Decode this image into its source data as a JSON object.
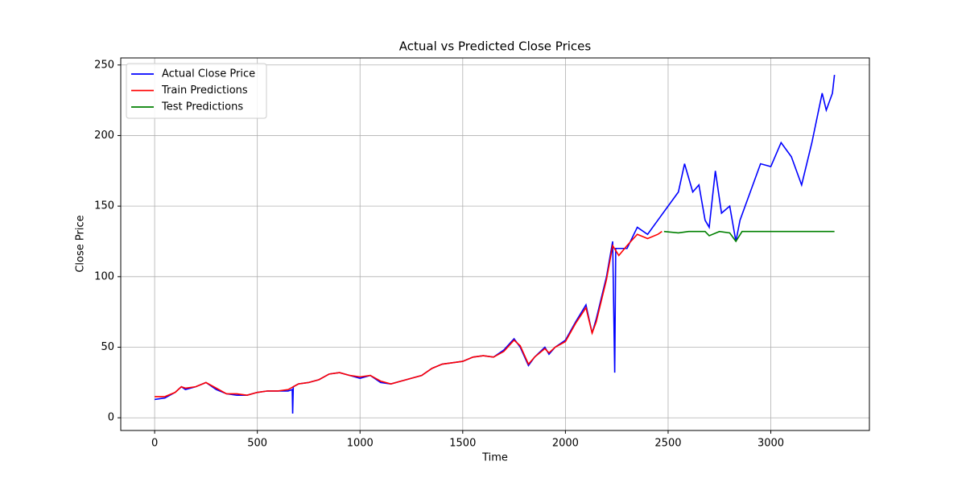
{
  "chart_data": {
    "type": "line",
    "title": "Actual vs Predicted Close Prices",
    "x_label": "Time",
    "y_label": "Close Price",
    "xlim": [
      -165,
      3480
    ],
    "ylim": [
      -9,
      255
    ],
    "xticks": [
      0,
      500,
      1000,
      1500,
      2000,
      2500,
      3000
    ],
    "yticks": [
      0,
      50,
      100,
      150,
      200,
      250
    ],
    "grid": true,
    "legend": "upper left",
    "series": [
      {
        "name": "Actual Close Price",
        "color": "#0000ff",
        "x": [
          0,
          50,
          100,
          130,
          150,
          200,
          250,
          300,
          350,
          400,
          450,
          500,
          550,
          600,
          650,
          670,
          672,
          675,
          700,
          750,
          800,
          850,
          900,
          950,
          1000,
          1050,
          1100,
          1150,
          1200,
          1250,
          1300,
          1350,
          1400,
          1450,
          1500,
          1550,
          1600,
          1650,
          1700,
          1750,
          1780,
          1820,
          1850,
          1900,
          1920,
          1950,
          2000,
          2050,
          2100,
          2130,
          2150,
          2200,
          2230,
          2240,
          2245,
          2300,
          2350,
          2400,
          2450,
          2500,
          2550,
          2580,
          2620,
          2650,
          2680,
          2700,
          2730,
          2760,
          2800,
          2830,
          2850,
          2900,
          2950,
          3000,
          3050,
          3100,
          3150,
          3200,
          3250,
          3270,
          3300,
          3310
        ],
        "values": [
          13,
          14,
          18,
          22,
          20,
          22,
          25,
          20,
          17,
          16,
          16,
          18,
          19,
          19,
          19,
          20,
          3,
          22,
          24,
          25,
          27,
          31,
          32,
          30,
          28,
          30,
          25,
          24,
          26,
          28,
          30,
          35,
          38,
          39,
          40,
          43,
          44,
          43,
          48,
          56,
          50,
          37,
          43,
          50,
          45,
          50,
          55,
          68,
          80,
          60,
          70,
          100,
          125,
          32,
          120,
          120,
          135,
          130,
          140,
          150,
          160,
          180,
          160,
          165,
          140,
          135,
          175,
          145,
          150,
          125,
          140,
          160,
          180,
          178,
          195,
          185,
          165,
          195,
          230,
          218,
          230,
          243
        ]
      },
      {
        "name": "Train Predictions",
        "color": "#ff0000",
        "x": [
          0,
          50,
          100,
          130,
          150,
          200,
          250,
          300,
          350,
          400,
          450,
          500,
          550,
          600,
          650,
          700,
          750,
          800,
          850,
          900,
          950,
          1000,
          1050,
          1100,
          1150,
          1200,
          1250,
          1300,
          1350,
          1400,
          1450,
          1500,
          1550,
          1600,
          1650,
          1700,
          1750,
          1780,
          1820,
          1850,
          1900,
          1920,
          1950,
          2000,
          2050,
          2100,
          2130,
          2150,
          2200,
          2230,
          2260,
          2300,
          2350,
          2400,
          2450,
          2470
        ],
        "values": [
          15,
          15,
          18,
          22,
          21,
          22,
          25,
          21,
          17,
          17,
          16,
          18,
          19,
          19,
          20,
          24,
          25,
          27,
          31,
          32,
          30,
          29,
          30,
          26,
          24,
          26,
          28,
          30,
          35,
          38,
          39,
          40,
          43,
          44,
          43,
          47,
          55,
          51,
          38,
          43,
          49,
          46,
          50,
          54,
          67,
          78,
          60,
          68,
          98,
          122,
          115,
          122,
          130,
          127,
          130,
          132
        ]
      },
      {
        "name": "Test Predictions",
        "color": "#008000",
        "x": [
          2480,
          2550,
          2600,
          2680,
          2700,
          2750,
          2800,
          2830,
          2860,
          3000,
          3310
        ],
        "values": [
          132,
          131,
          132,
          132,
          129,
          132,
          131,
          125,
          132,
          132,
          132
        ]
      }
    ]
  }
}
